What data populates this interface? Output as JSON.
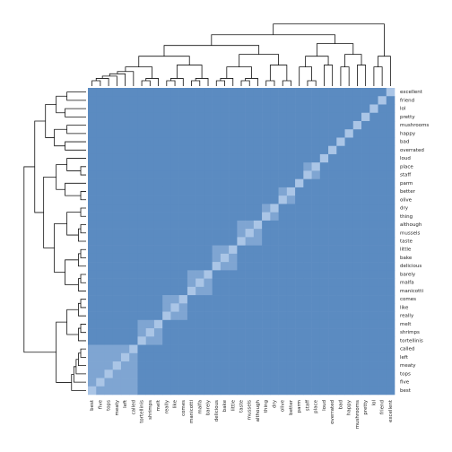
{
  "chart_data": {
    "type": "heatmap",
    "rows": [
      "excellent",
      "friend",
      "lol",
      "pretty",
      "mushrooms",
      "happy",
      "bad",
      "overrated",
      "loud",
      "place",
      "staff",
      "parm",
      "better",
      "olive",
      "dry",
      "thing",
      "although",
      "mussels",
      "taste",
      "little",
      "bake",
      "delicious",
      "barely",
      "malfa",
      "manicotti",
      "comes",
      "like",
      "really",
      "melt",
      "shrimps",
      "tortellinis",
      "called",
      "left",
      "meaty",
      "tops",
      "five",
      "best"
    ],
    "columns": [
      "best",
      "five",
      "tops",
      "meaty",
      "left",
      "called",
      "tortellinis",
      "shrimps",
      "melt",
      "really",
      "like",
      "comes",
      "manicotti",
      "malfa",
      "barely",
      "delicious",
      "bake",
      "little",
      "taste",
      "mussels",
      "although",
      "thing",
      "dry",
      "olive",
      "better",
      "parm",
      "staff",
      "place",
      "loud",
      "overrated",
      "bad",
      "happy",
      "mushrooms",
      "pretty",
      "lol",
      "friend",
      "excellent"
    ],
    "colors": [
      "#5b8bc1",
      "#7fa5d2",
      "#aac5e6"
    ],
    "values": [
      [
        0,
        0,
        0,
        0,
        0,
        0,
        0,
        0,
        0,
        0,
        0,
        0,
        0,
        0,
        0,
        0,
        0,
        0,
        0,
        0,
        0,
        0,
        0,
        0,
        0,
        0,
        0,
        0,
        0,
        0,
        0,
        0,
        0,
        0,
        0,
        0,
        2
      ],
      [
        0,
        0,
        0,
        0,
        0,
        0,
        0,
        0,
        0,
        0,
        0,
        0,
        0,
        0,
        0,
        0,
        0,
        0,
        0,
        0,
        0,
        0,
        0,
        0,
        0,
        0,
        0,
        0,
        0,
        0,
        0,
        0,
        0,
        0,
        0,
        2,
        0
      ],
      [
        0,
        0,
        0,
        0,
        0,
        0,
        0,
        0,
        0,
        0,
        0,
        0,
        0,
        0,
        0,
        0,
        0,
        0,
        0,
        0,
        0,
        0,
        0,
        0,
        0,
        0,
        0,
        0,
        0,
        0,
        0,
        0,
        0,
        0,
        2,
        0,
        0
      ],
      [
        0,
        0,
        0,
        0,
        0,
        0,
        0,
        0,
        0,
        0,
        0,
        0,
        0,
        0,
        0,
        0,
        0,
        0,
        0,
        0,
        0,
        0,
        0,
        0,
        0,
        0,
        0,
        0,
        0,
        0,
        0,
        0,
        0,
        2,
        0,
        0,
        0
      ],
      [
        0,
        0,
        0,
        0,
        0,
        0,
        0,
        0,
        0,
        0,
        0,
        0,
        0,
        0,
        0,
        0,
        0,
        0,
        0,
        0,
        0,
        0,
        0,
        0,
        0,
        0,
        0,
        0,
        0,
        0,
        0,
        0,
        2,
        0,
        0,
        0,
        0
      ],
      [
        0,
        0,
        0,
        0,
        0,
        0,
        0,
        0,
        0,
        0,
        0,
        0,
        0,
        0,
        0,
        0,
        0,
        0,
        0,
        0,
        0,
        0,
        0,
        0,
        0,
        0,
        0,
        0,
        0,
        0,
        0,
        2,
        0,
        0,
        0,
        0,
        0
      ],
      [
        0,
        0,
        0,
        0,
        0,
        0,
        0,
        0,
        0,
        0,
        0,
        0,
        0,
        0,
        0,
        0,
        0,
        0,
        0,
        0,
        0,
        0,
        0,
        0,
        0,
        0,
        0,
        0,
        0,
        0,
        2,
        0,
        0,
        0,
        0,
        0,
        0
      ],
      [
        0,
        0,
        0,
        0,
        0,
        0,
        0,
        0,
        0,
        0,
        0,
        0,
        0,
        0,
        0,
        0,
        0,
        0,
        0,
        0,
        0,
        0,
        0,
        0,
        0,
        0,
        0,
        0,
        0,
        2,
        0,
        0,
        0,
        0,
        0,
        0,
        0
      ],
      [
        0,
        0,
        0,
        0,
        0,
        0,
        0,
        0,
        0,
        0,
        0,
        0,
        0,
        0,
        0,
        0,
        0,
        0,
        0,
        0,
        0,
        0,
        0,
        0,
        0,
        0,
        0,
        0,
        2,
        0,
        0,
        0,
        0,
        0,
        0,
        0,
        0
      ],
      [
        0,
        0,
        0,
        0,
        0,
        0,
        0,
        0,
        0,
        0,
        0,
        0,
        0,
        0,
        0,
        0,
        0,
        0,
        0,
        0,
        0,
        0,
        0,
        0,
        0,
        0,
        1,
        2,
        0,
        0,
        0,
        0,
        0,
        0,
        0,
        0,
        0
      ],
      [
        0,
        0,
        0,
        0,
        0,
        0,
        0,
        0,
        0,
        0,
        0,
        0,
        0,
        0,
        0,
        0,
        0,
        0,
        0,
        0,
        0,
        0,
        0,
        0,
        0,
        0,
        2,
        1,
        0,
        0,
        0,
        0,
        0,
        0,
        0,
        0,
        0
      ],
      [
        0,
        0,
        0,
        0,
        0,
        0,
        0,
        0,
        0,
        0,
        0,
        0,
        0,
        0,
        0,
        0,
        0,
        0,
        0,
        0,
        0,
        0,
        0,
        0,
        0,
        2,
        0,
        0,
        0,
        0,
        0,
        0,
        0,
        0,
        0,
        0,
        0
      ],
      [
        0,
        0,
        0,
        0,
        0,
        0,
        0,
        0,
        0,
        0,
        0,
        0,
        0,
        0,
        0,
        0,
        0,
        0,
        0,
        0,
        0,
        0,
        0,
        1,
        2,
        0,
        0,
        0,
        0,
        0,
        0,
        0,
        0,
        0,
        0,
        0,
        0
      ],
      [
        0,
        0,
        0,
        0,
        0,
        0,
        0,
        0,
        0,
        0,
        0,
        0,
        0,
        0,
        0,
        0,
        0,
        0,
        0,
        0,
        0,
        0,
        0,
        2,
        1,
        0,
        0,
        0,
        0,
        0,
        0,
        0,
        0,
        0,
        0,
        0,
        0
      ],
      [
        0,
        0,
        0,
        0,
        0,
        0,
        0,
        0,
        0,
        0,
        0,
        0,
        0,
        0,
        0,
        0,
        0,
        0,
        0,
        0,
        0,
        1,
        2,
        0,
        0,
        0,
        0,
        0,
        0,
        0,
        0,
        0,
        0,
        0,
        0,
        0,
        0
      ],
      [
        0,
        0,
        0,
        0,
        0,
        0,
        0,
        0,
        0,
        0,
        0,
        0,
        0,
        0,
        0,
        0,
        0,
        0,
        0,
        0,
        0,
        2,
        1,
        0,
        0,
        0,
        0,
        0,
        0,
        0,
        0,
        0,
        0,
        0,
        0,
        0,
        0
      ],
      [
        0,
        0,
        0,
        0,
        0,
        0,
        0,
        0,
        0,
        0,
        0,
        0,
        0,
        0,
        0,
        0,
        0,
        0,
        1,
        1,
        2,
        0,
        0,
        0,
        0,
        0,
        0,
        0,
        0,
        0,
        0,
        0,
        0,
        0,
        0,
        0,
        0
      ],
      [
        0,
        0,
        0,
        0,
        0,
        0,
        0,
        0,
        0,
        0,
        0,
        0,
        0,
        0,
        0,
        0,
        0,
        0,
        1,
        2,
        1,
        0,
        0,
        0,
        0,
        0,
        0,
        0,
        0,
        0,
        0,
        0,
        0,
        0,
        0,
        0,
        0
      ],
      [
        0,
        0,
        0,
        0,
        0,
        0,
        0,
        0,
        0,
        0,
        0,
        0,
        0,
        0,
        0,
        0,
        0,
        0,
        2,
        1,
        1,
        0,
        0,
        0,
        0,
        0,
        0,
        0,
        0,
        0,
        0,
        0,
        0,
        0,
        0,
        0,
        0
      ],
      [
        0,
        0,
        0,
        0,
        0,
        0,
        0,
        0,
        0,
        0,
        0,
        0,
        0,
        0,
        0,
        1,
        1,
        2,
        0,
        0,
        0,
        0,
        0,
        0,
        0,
        0,
        0,
        0,
        0,
        0,
        0,
        0,
        0,
        0,
        0,
        0,
        0
      ],
      [
        0,
        0,
        0,
        0,
        0,
        0,
        0,
        0,
        0,
        0,
        0,
        0,
        0,
        0,
        0,
        1,
        2,
        1,
        0,
        0,
        0,
        0,
        0,
        0,
        0,
        0,
        0,
        0,
        0,
        0,
        0,
        0,
        0,
        0,
        0,
        0,
        0
      ],
      [
        0,
        0,
        0,
        0,
        0,
        0,
        0,
        0,
        0,
        0,
        0,
        0,
        0,
        0,
        0,
        2,
        1,
        1,
        0,
        0,
        0,
        0,
        0,
        0,
        0,
        0,
        0,
        0,
        0,
        0,
        0,
        0,
        0,
        0,
        0,
        0,
        0
      ],
      [
        0,
        0,
        0,
        0,
        0,
        0,
        0,
        0,
        0,
        0,
        0,
        0,
        1,
        1,
        2,
        0,
        0,
        0,
        0,
        0,
        0,
        0,
        0,
        0,
        0,
        0,
        0,
        0,
        0,
        0,
        0,
        0,
        0,
        0,
        0,
        0,
        0
      ],
      [
        0,
        0,
        0,
        0,
        0,
        0,
        0,
        0,
        0,
        0,
        0,
        0,
        1,
        2,
        1,
        0,
        0,
        0,
        0,
        0,
        0,
        0,
        0,
        0,
        0,
        0,
        0,
        0,
        0,
        0,
        0,
        0,
        0,
        0,
        0,
        0,
        0
      ],
      [
        0,
        0,
        0,
        0,
        0,
        0,
        0,
        0,
        0,
        0,
        0,
        0,
        2,
        1,
        1,
        0,
        0,
        0,
        0,
        0,
        0,
        0,
        0,
        0,
        0,
        0,
        0,
        0,
        0,
        0,
        0,
        0,
        0,
        0,
        0,
        0,
        0
      ],
      [
        0,
        0,
        0,
        0,
        0,
        0,
        0,
        0,
        0,
        1,
        1,
        2,
        0,
        0,
        0,
        0,
        0,
        0,
        0,
        0,
        0,
        0,
        0,
        0,
        0,
        0,
        0,
        0,
        0,
        0,
        0,
        0,
        0,
        0,
        0,
        0,
        0
      ],
      [
        0,
        0,
        0,
        0,
        0,
        0,
        0,
        0,
        0,
        1,
        2,
        1,
        0,
        0,
        0,
        0,
        0,
        0,
        0,
        0,
        0,
        0,
        0,
        0,
        0,
        0,
        0,
        0,
        0,
        0,
        0,
        0,
        0,
        0,
        0,
        0,
        0
      ],
      [
        0,
        0,
        0,
        0,
        0,
        0,
        0,
        0,
        0,
        2,
        1,
        1,
        0,
        0,
        0,
        0,
        0,
        0,
        0,
        0,
        0,
        0,
        0,
        0,
        0,
        0,
        0,
        0,
        0,
        0,
        0,
        0,
        0,
        0,
        0,
        0,
        0
      ],
      [
        0,
        0,
        0,
        0,
        0,
        0,
        1,
        1,
        2,
        0,
        0,
        0,
        0,
        0,
        0,
        0,
        0,
        0,
        0,
        0,
        0,
        0,
        0,
        0,
        0,
        0,
        0,
        0,
        0,
        0,
        0,
        0,
        0,
        0,
        0,
        0,
        0
      ],
      [
        0,
        0,
        0,
        0,
        0,
        0,
        1,
        2,
        1,
        0,
        0,
        0,
        0,
        0,
        0,
        0,
        0,
        0,
        0,
        0,
        0,
        0,
        0,
        0,
        0,
        0,
        0,
        0,
        0,
        0,
        0,
        0,
        0,
        0,
        0,
        0,
        0
      ],
      [
        0,
        0,
        0,
        0,
        0,
        0,
        2,
        1,
        1,
        0,
        0,
        0,
        0,
        0,
        0,
        0,
        0,
        0,
        0,
        0,
        0,
        0,
        0,
        0,
        0,
        0,
        0,
        0,
        0,
        0,
        0,
        0,
        0,
        0,
        0,
        0,
        0
      ],
      [
        1,
        1,
        1,
        1,
        1,
        2,
        0,
        0,
        0,
        0,
        0,
        0,
        0,
        0,
        0,
        0,
        0,
        0,
        0,
        0,
        0,
        0,
        0,
        0,
        0,
        0,
        0,
        0,
        0,
        0,
        0,
        0,
        0,
        0,
        0,
        0,
        0
      ],
      [
        1,
        1,
        1,
        1,
        2,
        1,
        0,
        0,
        0,
        0,
        0,
        0,
        0,
        0,
        0,
        0,
        0,
        0,
        0,
        0,
        0,
        0,
        0,
        0,
        0,
        0,
        0,
        0,
        0,
        0,
        0,
        0,
        0,
        0,
        0,
        0,
        0
      ],
      [
        1,
        1,
        1,
        2,
        1,
        1,
        0,
        0,
        0,
        0,
        0,
        0,
        0,
        0,
        0,
        0,
        0,
        0,
        0,
        0,
        0,
        0,
        0,
        0,
        0,
        0,
        0,
        0,
        0,
        0,
        0,
        0,
        0,
        0,
        0,
        0,
        0
      ],
      [
        1,
        1,
        2,
        1,
        1,
        1,
        0,
        0,
        0,
        0,
        0,
        0,
        0,
        0,
        0,
        0,
        0,
        0,
        0,
        0,
        0,
        0,
        0,
        0,
        0,
        0,
        0,
        0,
        0,
        0,
        0,
        0,
        0,
        0,
        0,
        0,
        0
      ],
      [
        1,
        2,
        1,
        1,
        1,
        1,
        0,
        0,
        0,
        0,
        0,
        0,
        0,
        0,
        0,
        0,
        0,
        0,
        0,
        0,
        0,
        0,
        0,
        0,
        0,
        0,
        0,
        0,
        0,
        0,
        0,
        0,
        0,
        0,
        0,
        0,
        0
      ],
      [
        2,
        1,
        1,
        1,
        1,
        1,
        0,
        0,
        0,
        0,
        0,
        0,
        0,
        0,
        0,
        0,
        0,
        0,
        0,
        0,
        0,
        0,
        0,
        0,
        0,
        0,
        0,
        0,
        0,
        0,
        0,
        0,
        0,
        0,
        0,
        0,
        0
      ]
    ]
  }
}
